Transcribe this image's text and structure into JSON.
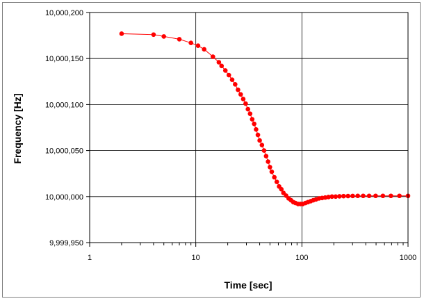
{
  "chart_data": {
    "type": "scatter",
    "xlabel": "Time [sec]",
    "ylabel": "Frequency [Hz]",
    "x_scale": "log",
    "xlim": [
      1,
      1000
    ],
    "ylim": [
      9999950,
      10000200
    ],
    "x_ticks": [
      1,
      10,
      100,
      1000
    ],
    "x_tick_labels": [
      "1",
      "10",
      "100",
      "1000"
    ],
    "y_ticks": [
      9999950,
      10000000,
      10000050,
      10000100,
      10000150,
      10000200
    ],
    "y_tick_labels": [
      "9,999,950",
      "10,000,000",
      "10,000,050",
      "10,000,100",
      "10,000,150",
      "10,000,200"
    ],
    "grid": true,
    "legend": "none",
    "marker": "circle",
    "series_color": "#ff0000",
    "series": [
      {
        "x": [
          2,
          4,
          5,
          7,
          9,
          10.5,
          12,
          14.5,
          16.5,
          17.5,
          19,
          20.5,
          22,
          23.5,
          25,
          26.5,
          28,
          29.5,
          31,
          32.5,
          34,
          35.5,
          37,
          38.5,
          40,
          42,
          44,
          46,
          48,
          50,
          52,
          55,
          58,
          61,
          64,
          67,
          71,
          75,
          79,
          83,
          87,
          92,
          97,
          102,
          108,
          114,
          121,
          128,
          136,
          145,
          155,
          166,
          178,
          192,
          208,
          226,
          247,
          272,
          301,
          336,
          378,
          430,
          495,
          580,
          690,
          830,
          1000
        ],
        "y": [
          10000177,
          10000176,
          10000174,
          10000171,
          10000167,
          10000164,
          10000160,
          10000152,
          10000146,
          10000142,
          10000137,
          10000132,
          10000127,
          10000122,
          10000116,
          10000111,
          10000106,
          10000101,
          10000095,
          10000090,
          10000084,
          10000079,
          10000073,
          10000067,
          10000061,
          10000056,
          10000050,
          10000044,
          10000038,
          10000032,
          10000027,
          10000021,
          10000016,
          10000011,
          10000008,
          10000004,
          10000001,
          9999998,
          9999996,
          9999994,
          9999993,
          9999992,
          9999992,
          9999992,
          9999993,
          9999994,
          9999995,
          9999996,
          9999997,
          9999998,
          9999998.5,
          9999999,
          9999999.5,
          10000000,
          10000000,
          10000000.3,
          10000000.5,
          10000000.6,
          10000000.7,
          10000000.8,
          10000000.8,
          10000000.8,
          10000000.8,
          10000000.8,
          10000000.8,
          10000000.8,
          10000000.8
        ]
      }
    ]
  }
}
